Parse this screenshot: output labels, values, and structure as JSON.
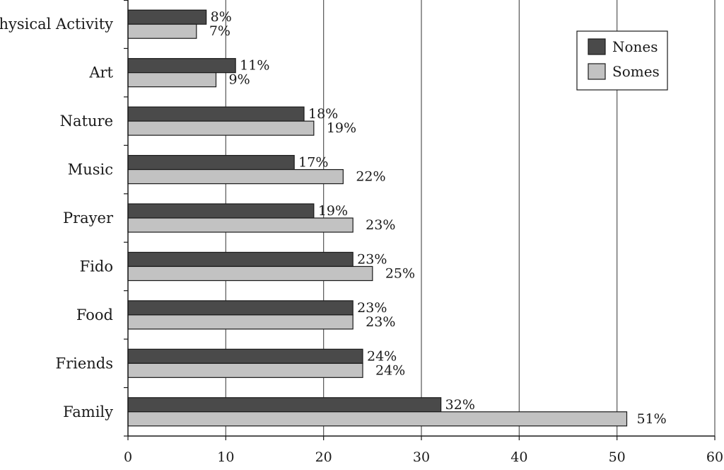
{
  "chart_data": {
    "type": "bar",
    "orientation": "horizontal",
    "categories": [
      "Physical Activity",
      "Art",
      "Nature",
      "Music",
      "Prayer",
      "Fido",
      "Food",
      "Friends",
      "Family"
    ],
    "series": [
      {
        "name": "Nones",
        "color": "#4a4a4a",
        "values": [
          8,
          11,
          18,
          17,
          19,
          23,
          23,
          24,
          32
        ],
        "labels": [
          "8%",
          "11%",
          "18%",
          "17%",
          "19%",
          "23%",
          "23%",
          "24%",
          "32%"
        ]
      },
      {
        "name": "Somes",
        "color": "#c2c2c2",
        "values": [
          7,
          9,
          19,
          22,
          23,
          25,
          23,
          24,
          51
        ],
        "labels": [
          "7%",
          "9%",
          "19%",
          "22%",
          "23%",
          "25%",
          "23%",
          "24%",
          "51%"
        ]
      }
    ],
    "xlim": [
      0,
      60
    ],
    "xticks": [
      "0",
      "10",
      "20",
      "30",
      "40",
      "50",
      "60"
    ],
    "grid": "vertical",
    "legend": "top-right",
    "title": "",
    "xlabel": "",
    "ylabel": ""
  }
}
